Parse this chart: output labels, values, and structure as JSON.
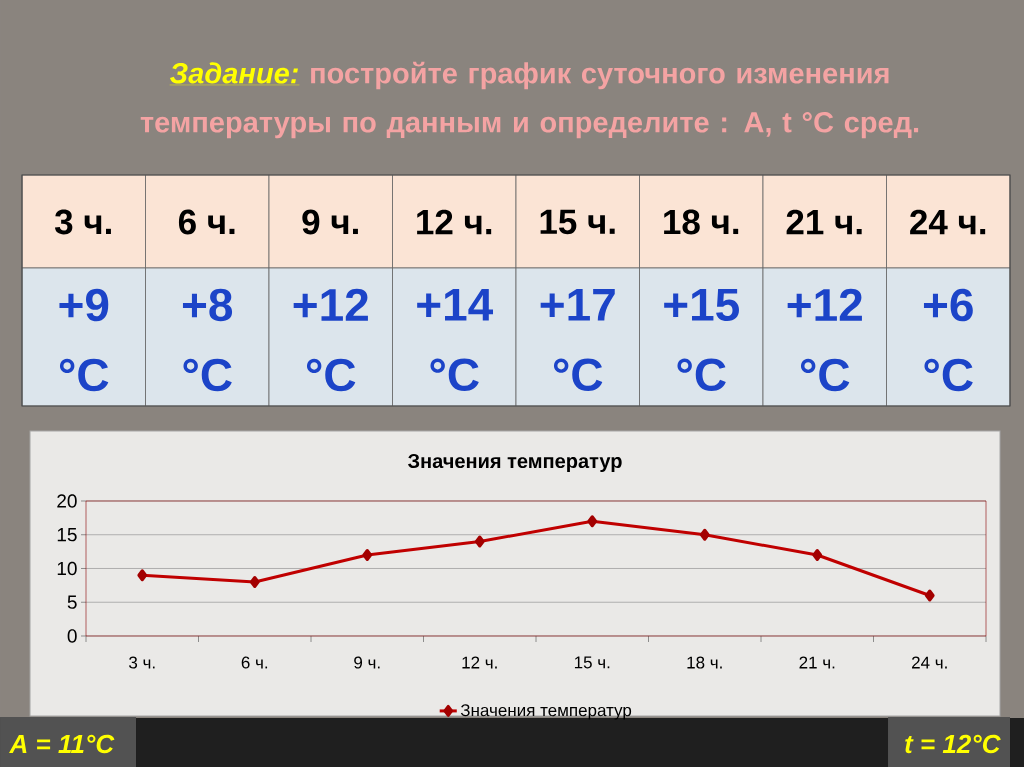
{
  "chart_data": {
    "type": "line",
    "title": "*Задание:* постройте график суточного изменения температуры по данным и определите : A, t °C сред.",
    "subtitle": "Значения температур",
    "categories": [
      "3 ч.",
      "6 ч.",
      "9 ч.",
      "12 ч.",
      "15 ч.",
      "18 ч.",
      "21 ч.",
      "24 ч."
    ],
    "series": [
      {
        "name": "Значения температур",
        "color": "#c00000",
        "values": [
          9,
          8,
          12,
          14,
          17,
          15,
          12,
          6
        ]
      }
    ],
    "ylim": [
      0,
      20
    ],
    "yticks": [
      0,
      5,
      10,
      15,
      20
    ],
    "grid": "y",
    "legend": "bottom",
    "marker": "diamond",
    "line_style": "solid",
    "annotations": [
      "+9 °C",
      "+8 °C",
      "+12 °C",
      "+14 °C",
      "+17 °C",
      "+15 °C",
      "+12 °C",
      "+6 °C",
      "A = 11°C",
      "t = 12°C"
    ]
  }
}
